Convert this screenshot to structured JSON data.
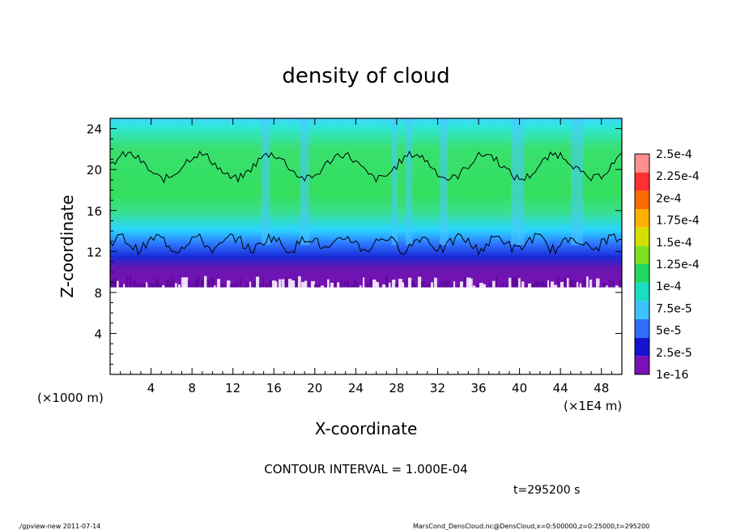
{
  "chart_data": {
    "type": "heatmap",
    "title": "density of cloud",
    "xlabel": "X-coordinate",
    "ylabel": "Z-coordinate",
    "x_unit": "(×1E4 m)",
    "y_unit": "(×1000 m)",
    "xlim": [
      0,
      50
    ],
    "ylim": [
      0,
      25
    ],
    "x_ticks": [
      "4",
      "8",
      "12",
      "16",
      "20",
      "24",
      "28",
      "32",
      "36",
      "40",
      "44",
      "48"
    ],
    "x_tick_values": [
      4,
      8,
      12,
      16,
      20,
      24,
      28,
      32,
      36,
      40,
      44,
      48
    ],
    "y_ticks": [
      "4",
      "8",
      "12",
      "16",
      "20",
      "24"
    ],
    "y_tick_values": [
      4,
      8,
      12,
      16,
      20,
      24
    ],
    "colorbar": {
      "labels": [
        "1e-16",
        "2.5e-5",
        "5e-5",
        "7.5e-5",
        "1e-4",
        "1.25e-4",
        "1.5e-4",
        "1.75e-4",
        "2e-4",
        "2.25e-4",
        "2.5e-4"
      ],
      "colors": [
        "#7a12b8",
        "#1414d0",
        "#2f6dff",
        "#3cc2ff",
        "#19dcc0",
        "#20d860",
        "#7ee021",
        "#d6e000",
        "#ffb000",
        "#ff6a00",
        "#ff3030",
        "#ff8f8f"
      ]
    },
    "contour_interval_text": "CONTOUR INTERVAL = 1.000E-04",
    "time_text": "t=295200 s",
    "cloud_base_z": 8.5,
    "cloud_top_z": 25,
    "contour_level": 0.0001
  },
  "footer": {
    "left": "./gpview-new  2011-07-14",
    "right": "MarsCond_DensCloud.nc@DensCloud,x=0:500000,z=0:25000,t=295200"
  },
  "colors": {
    "deep": "#6a0fa8",
    "blue": "#1e3cff",
    "cyan": "#3fd4ff",
    "green": "#33e06a",
    "contour": "#000000"
  }
}
